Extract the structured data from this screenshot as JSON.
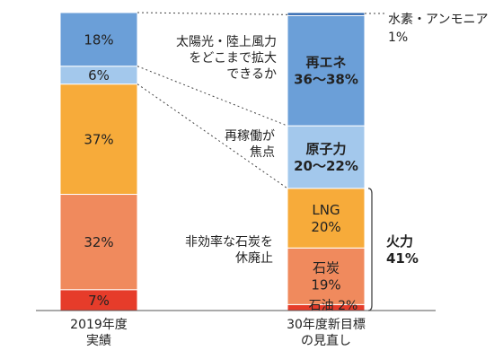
{
  "chart_data": {
    "type": "bar",
    "stacked": true,
    "categories": [
      "2019年度\n実績",
      "30年度新目標\nの見直し"
    ],
    "bars": [
      {
        "category": "2019年度\n実績",
        "segments": [
          {
            "name": "石油",
            "value": 7,
            "label": "7%",
            "color": "#e63c2a"
          },
          {
            "name": "石炭",
            "value": 32,
            "label": "32%",
            "color": "#f08a5d"
          },
          {
            "name": "LNG",
            "value": 37,
            "label": "37%",
            "color": "#f7ab3a"
          },
          {
            "name": "原子力",
            "value": 6,
            "label": "6%",
            "color": "#a3c8ec"
          },
          {
            "name": "再エネ",
            "value": 18,
            "label": "18%",
            "color": "#6b9fd8"
          }
        ]
      },
      {
        "category": "30年度新目標\nの見直し",
        "segments": [
          {
            "name": "石油",
            "value": 2,
            "label": "石油 2%",
            "color": "#e63c2a"
          },
          {
            "name": "石炭",
            "value": 19,
            "label": "石炭\n19%",
            "color": "#f08a5d"
          },
          {
            "name": "LNG",
            "value": 20,
            "label": "LNG\n20%",
            "color": "#f7ab3a"
          },
          {
            "name": "原子力",
            "value": 21,
            "label": "原子力\n20～22%",
            "color": "#a3c8ec",
            "bold": true
          },
          {
            "name": "再エネ",
            "value": 37,
            "label": "再エネ\n36～38%",
            "color": "#6b9fd8",
            "bold": true
          },
          {
            "name": "水素・アンモニア",
            "value": 1,
            "label": "",
            "color": "#2a63ad"
          }
        ]
      }
    ],
    "annotations": {
      "hydrogen": "水素・アンモニア\n1%",
      "renewable": "太陽光・陸上風力\nをどこまで拡大\nできるか",
      "nuclear": "再稼働が\n焦点",
      "coal": "非効率な石炭を\n休廃止",
      "thermal": "火力\n41%"
    },
    "ylim": [
      0,
      100
    ]
  }
}
